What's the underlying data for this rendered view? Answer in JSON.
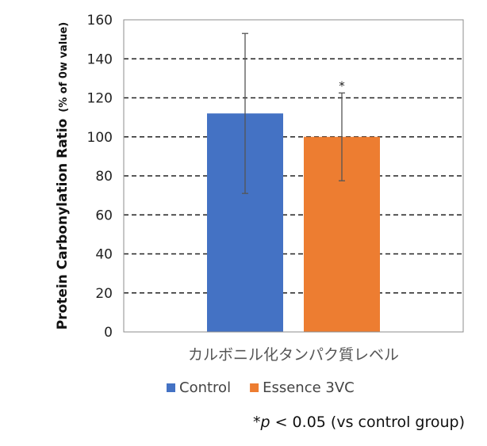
{
  "chart_data": {
    "type": "bar",
    "categories": [
      "カルボニル化タンパク質レベル"
    ],
    "series": [
      {
        "name": "Control",
        "values": [
          112
        ],
        "error": [
          41
        ],
        "color": "#4472C4",
        "annotation": ""
      },
      {
        "name": "Essence 3VC",
        "values": [
          100
        ],
        "error": [
          22.5
        ],
        "color": "#ED7D31",
        "annotation": "*"
      }
    ],
    "xlabel": "カルボニル化タンパク質レベル",
    "ylabel": "Protein Carbonylation Ratio",
    "ylabel_unit": "(% of 0w value)",
    "ylim": [
      0,
      160
    ],
    "yticks": [
      0,
      20,
      40,
      60,
      80,
      100,
      120,
      140,
      160
    ],
    "grid": true,
    "legend_position": "bottom"
  },
  "footnote": {
    "star": "*",
    "p": "p",
    "rest": " < 0.05 (vs control group)"
  }
}
